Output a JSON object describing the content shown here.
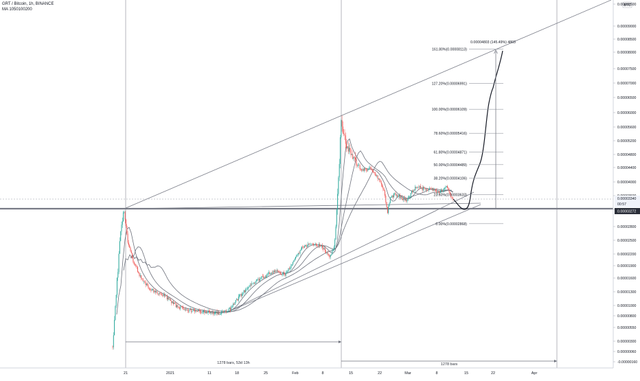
{
  "header": {
    "symbol": "GRT / Bitcoin, 1h, BINANCE",
    "indicator": "MA 1050100200"
  },
  "currency_badge": "BTC",
  "colors": {
    "up": "#26a69a",
    "down": "#ef5350",
    "ma": "#6b6f7a",
    "line": "#787b86",
    "support": "#787b86",
    "axis_text": "#131722",
    "range_text": "#2a2e39",
    "price_tag_bg": "#2a2e39",
    "price_tag_text": "#ffffff",
    "crosshair_tag_bg": "#f0f3fa"
  },
  "chart_data": {
    "type": "candlestick",
    "series_name": "GRT / Bitcoin, 1h, BINANCE",
    "y_ticks": [
      "0.00009500",
      "0.00009000",
      "0.00008500",
      "0.00008000",
      "0.00007500",
      "0.00007000",
      "0.00006500",
      "0.00006000",
      "0.00005600",
      "0.00005200",
      "0.00004800",
      "0.00004400",
      "0.00004000",
      "0.00003600",
      "0.00003200",
      "0.00002800",
      "0.00002500",
      "0.00002200",
      "0.00001900",
      "0.00001600",
      "0.00001300",
      "0.00001000",
      "0.00000800",
      "0.00000550",
      "0.00000300",
      "0.00000060",
      "-0.00000160"
    ],
    "x_ticks": [
      "21",
      "2021",
      "11",
      "18",
      "25",
      "Feb",
      "8",
      "15",
      "22",
      "Mar",
      "8",
      "15",
      "22",
      "Apr"
    ],
    "current_price": "0.00003272",
    "crosshair_price": "0.00003340",
    "crosshair_sub": "00:57",
    "price_points": [
      [
        "21",
        5.5e-06
      ],
      [
        "21",
        2.2e-05
      ],
      [
        "21",
        2.9e-05
      ],
      [
        "21",
        3.2e-05
      ],
      [
        "21",
        2.45e-05
      ],
      [
        "2021",
        1.3e-05
      ],
      [
        "2021",
        1.05e-05
      ],
      [
        "11",
        9.5e-06
      ],
      [
        "11",
        8.5e-06
      ],
      [
        "18",
        1e-05
      ],
      [
        "18",
        1.3e-05
      ],
      [
        "25",
        1.7e-05
      ],
      [
        "25",
        2e-05
      ],
      [
        "Feb",
        2.4e-05
      ],
      [
        "Feb",
        2.2e-05
      ],
      [
        "8",
        2.3e-05
      ],
      [
        "8",
        4e-05
      ],
      [
        "8",
        5.3e-05
      ],
      [
        "15",
        4.6e-05
      ],
      [
        "15",
        4.3e-05
      ],
      [
        "22",
        3.6e-05
      ],
      [
        "22",
        3.1e-05
      ],
      [
        "Mar",
        3.4e-05
      ],
      [
        "Mar",
        3.7e-05
      ],
      [
        "8",
        3.6e-05
      ],
      [
        "8",
        3.4e-05
      ]
    ],
    "fib_levels": [
      {
        "label": "161.80%(0.00008113)",
        "value": 8.113e-05
      },
      {
        "label": "127.20%(0.00006991)",
        "value": 6.991e-05
      },
      {
        "label": "100.00%(0.00006109)",
        "value": 6.109e-05
      },
      {
        "label": "78.60%(0.00005416)",
        "value": 5.416e-05
      },
      {
        "label": "61.80%(0.00004871)",
        "value": 4.871e-05
      },
      {
        "label": "50.00%(0.00004489)",
        "value": 4.489e-05
      },
      {
        "label": "38.20%(0.00004106)",
        "value": 4.106e-05
      },
      {
        "label": "23.60%(0.00003633)",
        "value": 3.633e-05
      },
      {
        "label": "0.00%(0.00002868)",
        "value": 2.868e-05
      }
    ],
    "measure_label": "0.00004803 (145.49%) 4803",
    "ranges": [
      {
        "label": "1278 bars, 53d 13h"
      },
      {
        "label": "1278 bars"
      }
    ]
  }
}
